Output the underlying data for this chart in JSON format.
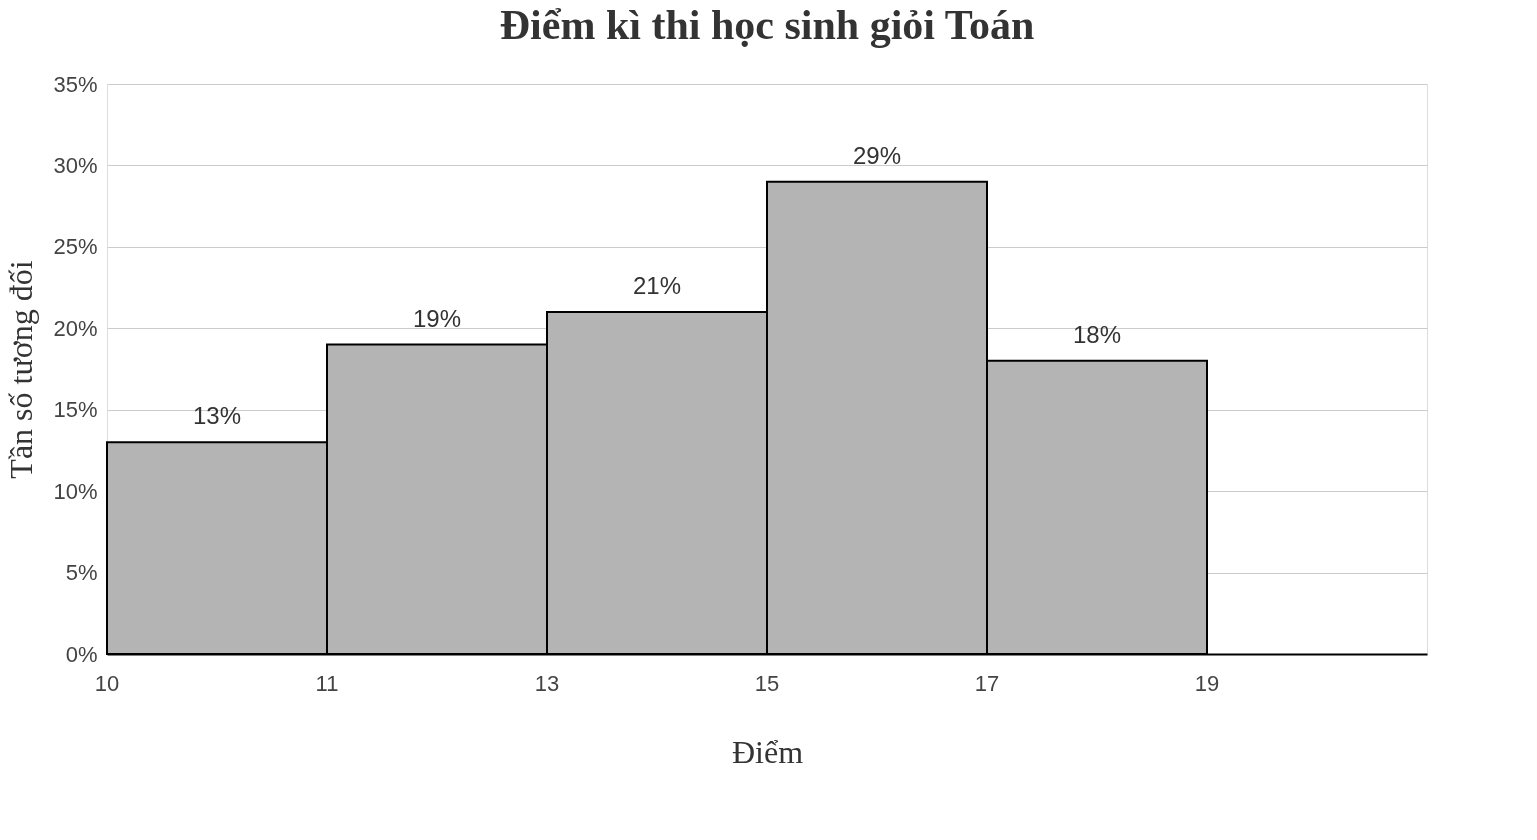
{
  "chart_data": {
    "type": "bar",
    "title": "Điểm kì thi học sinh giỏi Toán",
    "xlabel": "Điểm",
    "ylabel": "Tần số tương đối",
    "categories": [
      null,
      null,
      null,
      null,
      null
    ],
    "values": [
      13,
      19,
      21,
      29,
      18
    ],
    "value_labels": [
      "13%",
      "19%",
      "21%",
      "29%",
      "18%"
    ],
    "annotations": [
      "10",
      "11",
      "13",
      "15",
      "17",
      "19"
    ],
    "color": "#b4b4b4",
    "ylim": [
      0,
      35
    ],
    "yticks": [
      {
        "value": 0,
        "label": "0%"
      },
      {
        "value": 5,
        "label": "5%"
      },
      {
        "value": 10,
        "label": "10%"
      },
      {
        "value": 15,
        "label": "15%"
      },
      {
        "value": 20,
        "label": "20%"
      },
      {
        "value": 25,
        "label": "25%"
      },
      {
        "value": 30,
        "label": "30%"
      },
      {
        "value": 35,
        "label": "35%"
      }
    ],
    "grid": "y"
  }
}
